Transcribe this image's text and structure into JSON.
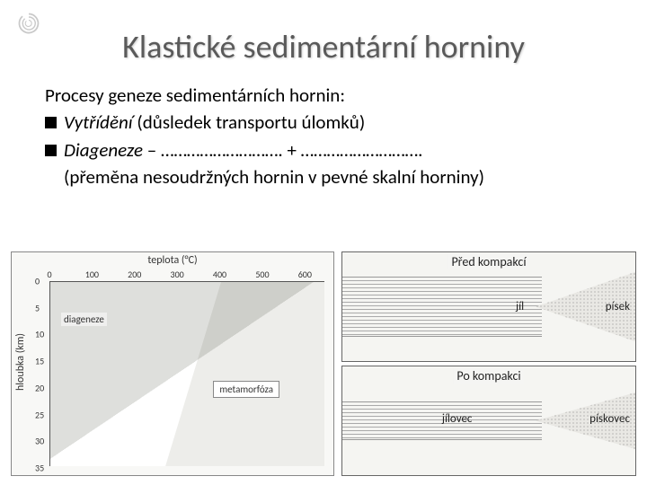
{
  "title": "Klastické sedimentární horniny",
  "intro": "Procesy geneze sedimentárních hornin:",
  "bullets": [
    {
      "term": "Vytřídění",
      "rest": " (důsledek transportu úlomků)"
    },
    {
      "term": "Diageneze",
      "rest": "   –   ……………………….   +   ………………………."
    }
  ],
  "paren": "(přeměna nesoudržných hornin v pevné skalní horniny)",
  "left_chart": {
    "x_axis_label": "teplota (°C)",
    "y_axis_label": "hloubka (km)",
    "x_ticks": [
      0,
      100,
      200,
      300,
      400,
      500,
      600
    ],
    "y_ticks": [
      0,
      5,
      10,
      15,
      20,
      25,
      30,
      35
    ],
    "xlim": [
      0,
      650
    ],
    "ylim": [
      0,
      35
    ],
    "region1_label": "diageneze",
    "region2_label": "metamorfóza",
    "region1_color": "#d8dad6",
    "region2_color": "#ededea",
    "bg_color": "#ffffff",
    "axis_color": "#555555",
    "tick_fontsize": 10,
    "label_fontsize": 12
  },
  "right_panels": {
    "top_title": "Před kompakcí",
    "bottom_title": "Po kompakci",
    "top_left_label": "jíl",
    "top_right_label": "písek",
    "bottom_left_label": "jílovec",
    "bottom_right_label": "pískovec",
    "stratum_color": "#f5f5f2",
    "line_color": "#aaaaaa",
    "wedge_color": "#e9e8e4",
    "border_color": "#666666",
    "label_fontsize": 13
  },
  "colors": {
    "title_color": "#5a5a5a",
    "text_color": "#000000",
    "background": "#ffffff"
  },
  "fonts": {
    "title_size": 36,
    "body_size": 21
  }
}
